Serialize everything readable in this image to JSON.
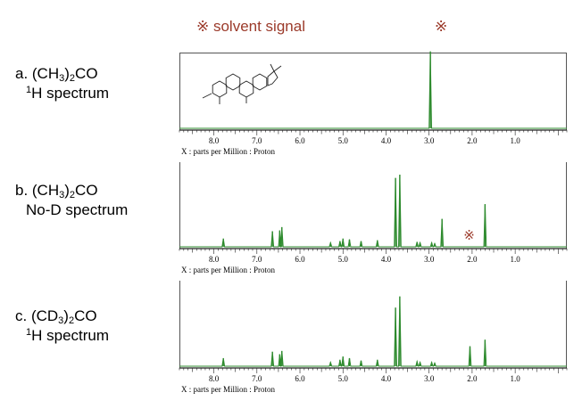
{
  "header": {
    "solvent_note": "※ solvent signal",
    "marker": "※"
  },
  "chart_data": [
    {
      "type": "line",
      "label_line1": [
        "a. (CH",
        "3",
        ")",
        "2",
        "CO"
      ],
      "label_line2": [
        "",
        "1",
        "H spectrum"
      ],
      "xlabel": "X : parts per Million : Proton",
      "x_ticks": [
        "8.0",
        "7.0",
        "6.0",
        "5.0",
        "4.0",
        "3.0",
        "2.0",
        "1.0"
      ],
      "x_tick_values": [
        8.0,
        7.0,
        6.0,
        5.0,
        4.0,
        3.0,
        2.0,
        1.0
      ],
      "xlim": [
        8.8,
        -0.2
      ],
      "peaks": [
        {
          "ppm": 2.97,
          "height": 0.98
        }
      ],
      "annotation": "",
      "structure_inset": true
    },
    {
      "type": "line",
      "label_line1": [
        "b. (CH",
        "3",
        ")",
        "2",
        "CO"
      ],
      "label_line2": [
        "No-D spectrum"
      ],
      "xlabel": "X : parts per Million : Proton",
      "x_ticks": [
        "8.0",
        "7.0",
        "6.0",
        "5.0",
        "4.0",
        "3.0",
        "2.0",
        "1.0"
      ],
      "x_tick_values": [
        8.0,
        7.0,
        6.0,
        5.0,
        4.0,
        3.0,
        2.0,
        1.0
      ],
      "xlim": [
        8.8,
        -0.2
      ],
      "peaks": [
        {
          "ppm": 7.78,
          "height": 0.1
        },
        {
          "ppm": 6.64,
          "height": 0.19
        },
        {
          "ppm": 6.47,
          "height": 0.2
        },
        {
          "ppm": 6.42,
          "height": 0.24
        },
        {
          "ppm": 5.29,
          "height": 0.05
        },
        {
          "ppm": 5.07,
          "height": 0.07
        },
        {
          "ppm": 5.0,
          "height": 0.1
        },
        {
          "ppm": 4.85,
          "height": 0.09
        },
        {
          "ppm": 4.58,
          "height": 0.07
        },
        {
          "ppm": 4.2,
          "height": 0.08
        },
        {
          "ppm": 3.78,
          "height": 0.84
        },
        {
          "ppm": 3.68,
          "height": 0.88
        },
        {
          "ppm": 3.28,
          "height": 0.06
        },
        {
          "ppm": 3.21,
          "height": 0.05
        },
        {
          "ppm": 2.94,
          "height": 0.05
        },
        {
          "ppm": 2.87,
          "height": 0.04
        },
        {
          "ppm": 2.7,
          "height": 0.34
        },
        {
          "ppm": 1.7,
          "height": 0.52
        }
      ],
      "annotation": "※",
      "annotation_ppm": 2.07
    },
    {
      "type": "line",
      "label_line1": [
        "c. (CD",
        "3",
        ")",
        "2",
        "CO"
      ],
      "label_line2": [
        "",
        "1",
        "H spectrum"
      ],
      "xlabel": "X : parts per Million : Proton",
      "x_ticks": [
        "8.0",
        "7.0",
        "6.0",
        "5.0",
        "4.0",
        "3.0",
        "2.0",
        "1.0"
      ],
      "x_tick_values": [
        8.0,
        7.0,
        6.0,
        5.0,
        4.0,
        3.0,
        2.0,
        1.0
      ],
      "xlim": [
        8.8,
        -0.2
      ],
      "peaks": [
        {
          "ppm": 7.78,
          "height": 0.1
        },
        {
          "ppm": 6.64,
          "height": 0.18
        },
        {
          "ppm": 6.47,
          "height": 0.15
        },
        {
          "ppm": 6.42,
          "height": 0.19
        },
        {
          "ppm": 5.29,
          "height": 0.05
        },
        {
          "ppm": 5.07,
          "height": 0.08
        },
        {
          "ppm": 5.0,
          "height": 0.12
        },
        {
          "ppm": 4.85,
          "height": 0.1
        },
        {
          "ppm": 4.58,
          "height": 0.07
        },
        {
          "ppm": 4.2,
          "height": 0.08
        },
        {
          "ppm": 3.78,
          "height": 0.73
        },
        {
          "ppm": 3.68,
          "height": 0.87
        },
        {
          "ppm": 3.28,
          "height": 0.06
        },
        {
          "ppm": 3.21,
          "height": 0.05
        },
        {
          "ppm": 2.94,
          "height": 0.05
        },
        {
          "ppm": 2.87,
          "height": 0.04
        },
        {
          "ppm": 2.05,
          "height": 0.25
        },
        {
          "ppm": 1.7,
          "height": 0.33
        }
      ],
      "annotation": ""
    }
  ],
  "colors": {
    "trace": "#2e8b2e",
    "axis": "#222222",
    "annotation": "#9b3a2a"
  }
}
